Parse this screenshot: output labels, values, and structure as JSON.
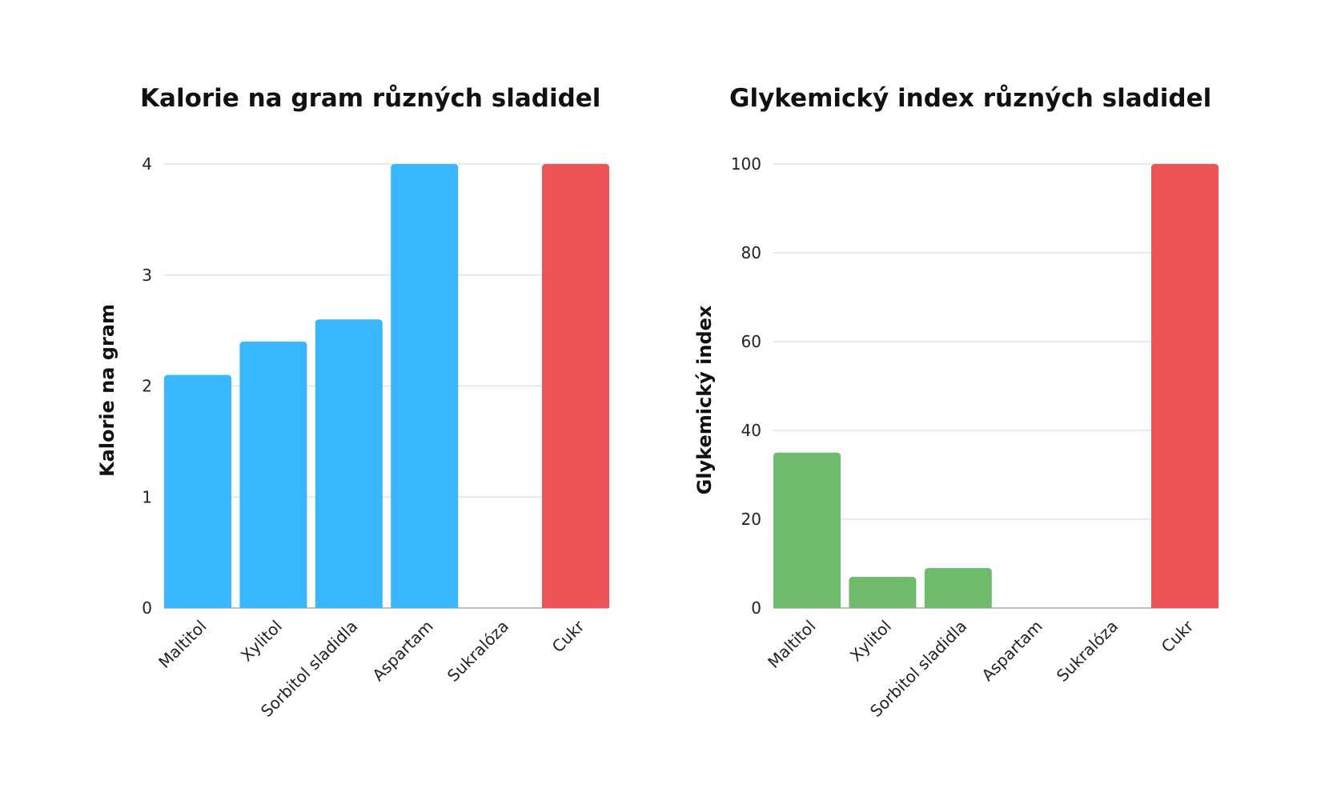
{
  "chart_data": [
    {
      "type": "bar",
      "title": "Kalorie na gram různých sladidel",
      "xlabel": "",
      "ylabel": "Kalorie na gram",
      "categories": [
        "Maltitol",
        "Xylitol",
        "Sorbitol sladidla",
        "Aspartam",
        "Sukralóza",
        "Cukr"
      ],
      "values": [
        2.1,
        2.4,
        2.6,
        4,
        0,
        4
      ],
      "colors": [
        "#38b6ff",
        "#38b6ff",
        "#38b6ff",
        "#38b6ff",
        "#38b6ff",
        "#ec5457"
      ],
      "ylim": [
        0,
        4
      ],
      "yticks": [
        0,
        1,
        2,
        3,
        4
      ],
      "grid": true,
      "legend": "none"
    },
    {
      "type": "bar",
      "title": "Glykemický index různých sladidel",
      "xlabel": "",
      "ylabel": "Glykemický index",
      "categories": [
        "Maltitol",
        "Xylitol",
        "Sorbitol sladidla",
        "Aspartam",
        "Sukralóza",
        "Cukr"
      ],
      "values": [
        35,
        7,
        9,
        0,
        0,
        100
      ],
      "colors": [
        "#6fbb6e",
        "#6fbb6e",
        "#6fbb6e",
        "#6fbb6e",
        "#6fbb6e",
        "#ec5457"
      ],
      "ylim": [
        0,
        100
      ],
      "yticks": [
        0,
        20,
        40,
        60,
        80,
        100
      ],
      "grid": true,
      "legend": "none"
    }
  ]
}
